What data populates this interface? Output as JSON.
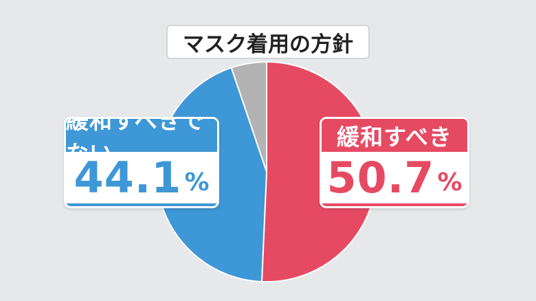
{
  "colors": {
    "background": "#e6e8ea",
    "should_relax": "#e64a63",
    "should_not_relax": "#3e97d6",
    "other": "#b3b3b3"
  },
  "chart_data": {
    "type": "pie",
    "title": "マスク着用の方針",
    "start_angle_deg": 0,
    "direction": "clockwise",
    "slices": [
      {
        "label": "緩和すべき",
        "value": 50.7,
        "display": "50.7",
        "unit": "%",
        "color": "#e64a63"
      },
      {
        "label": "緩和すべきでない",
        "value": 44.1,
        "display": "44.1",
        "unit": "%",
        "color": "#3e97d6"
      },
      {
        "label": "",
        "value": 5.2,
        "color": "#b3b3b3"
      }
    ]
  }
}
